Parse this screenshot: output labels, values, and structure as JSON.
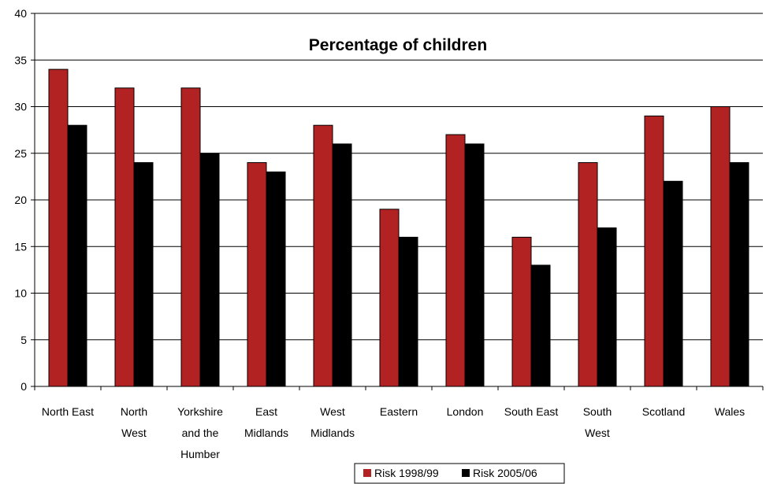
{
  "chart_data": {
    "type": "bar",
    "title": "Percentage of children",
    "categories": [
      [
        "North East"
      ],
      [
        "North",
        "West"
      ],
      [
        "Yorkshire",
        "and the",
        "Humber"
      ],
      [
        "East",
        "Midlands"
      ],
      [
        "West",
        "Midlands"
      ],
      [
        "Eastern"
      ],
      [
        "London"
      ],
      [
        "South East"
      ],
      [
        "South",
        "West"
      ],
      [
        "Scotland"
      ],
      [
        "Wales"
      ]
    ],
    "series": [
      {
        "name": "Risk 1998/99",
        "color": "#b22222",
        "values": [
          34,
          32,
          32,
          24,
          28,
          19,
          27,
          16,
          24,
          29,
          30
        ]
      },
      {
        "name": "Risk 2005/06",
        "color": "#000000",
        "values": [
          28,
          24,
          25,
          23,
          26,
          16,
          26,
          13,
          17,
          22,
          24
        ]
      }
    ],
    "ylim": [
      0,
      40
    ],
    "yticks": [
      0,
      5,
      10,
      15,
      20,
      25,
      30,
      35,
      40
    ],
    "xlabel": "",
    "ylabel": "",
    "grid": true,
    "legend": "bottom"
  }
}
